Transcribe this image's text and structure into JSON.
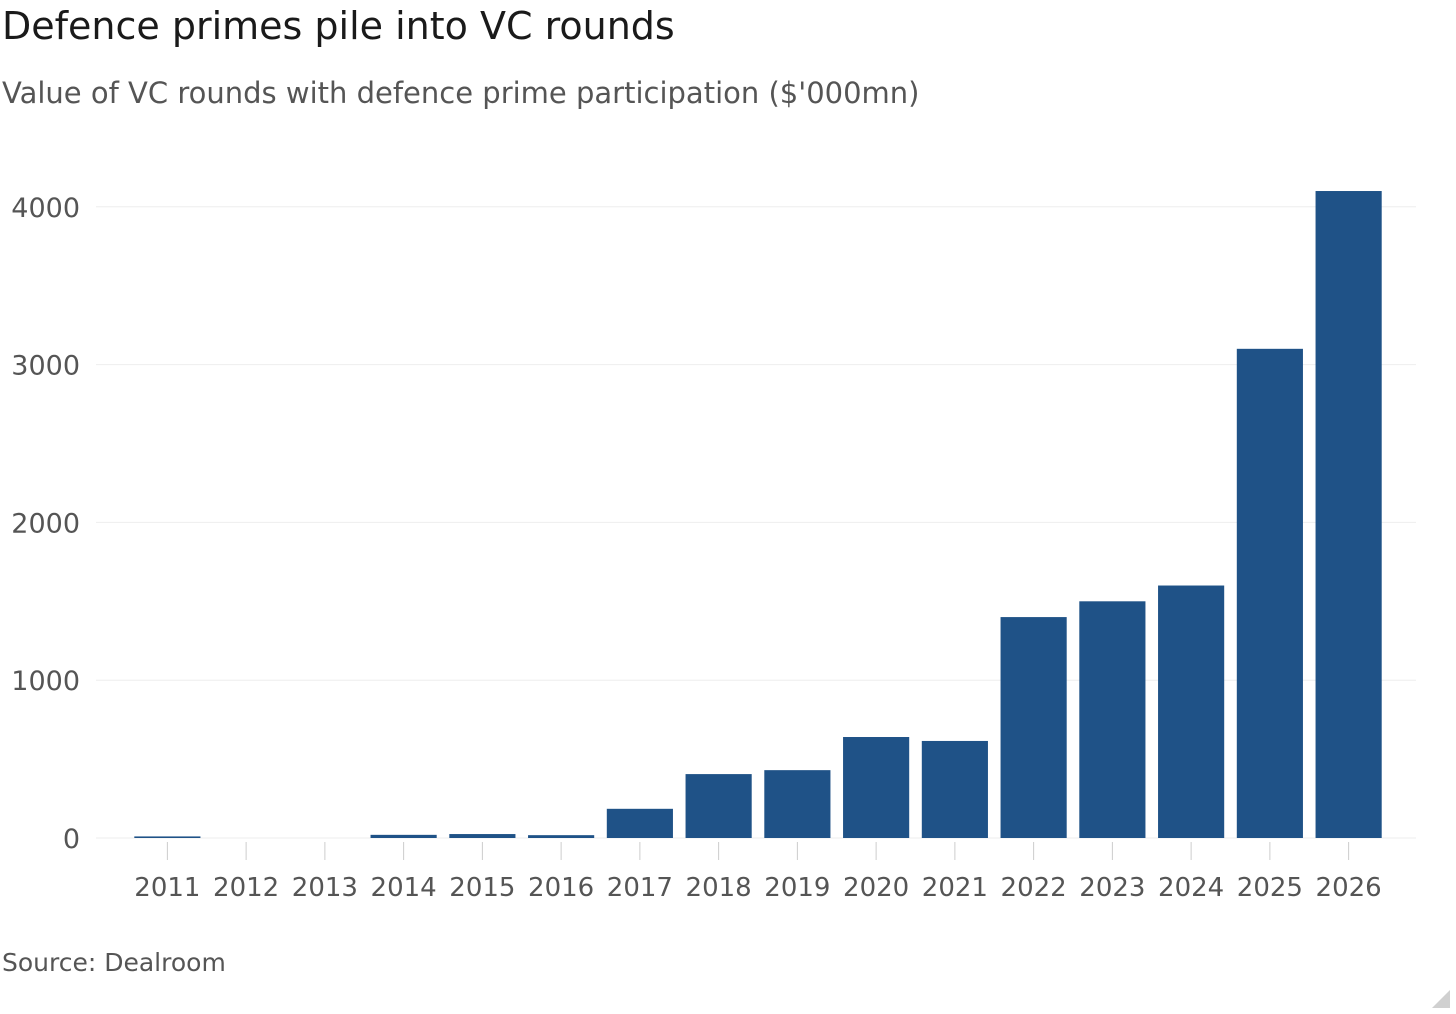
{
  "title": "Defence primes pile into VC rounds",
  "subtitle": "Value of VC rounds with defence prime participation ($'000mn)",
  "source": "Source: Dealroom",
  "colors": {
    "bar": "#1f5287",
    "gridline": "#eeeeee",
    "tick_text": "#555555",
    "tick_mark": "#cccccc"
  },
  "chart_data": {
    "type": "bar",
    "categories": [
      "2011",
      "2012",
      "2013",
      "2014",
      "2015",
      "2016",
      "2017",
      "2018",
      "2019",
      "2020",
      "2021",
      "2022",
      "2023",
      "2024",
      "2025",
      "2026"
    ],
    "values": [
      10,
      0,
      0,
      20,
      25,
      18,
      185,
      405,
      430,
      640,
      615,
      1400,
      1500,
      1600,
      3100,
      4100
    ],
    "yticks": [
      0,
      1000,
      2000,
      3000,
      4000
    ],
    "ylim": [
      0,
      4100
    ],
    "grid": true
  }
}
